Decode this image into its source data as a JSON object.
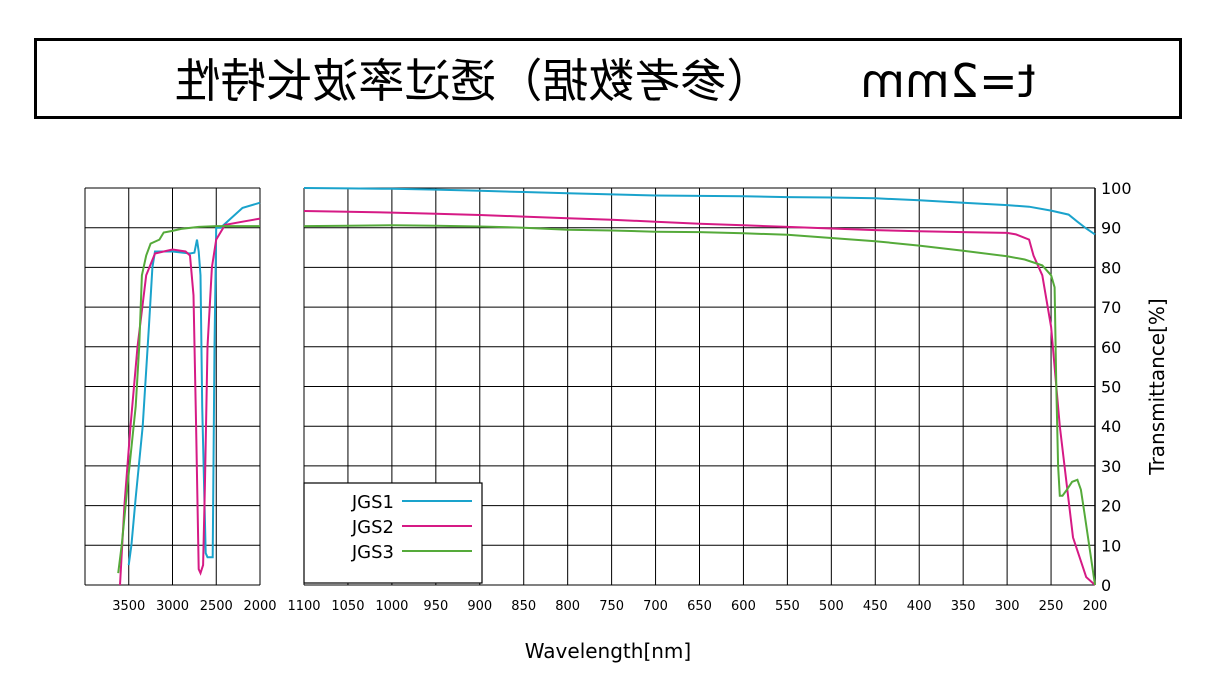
{
  "title": "t=2mm      （参考数据）透过率波长特性",
  "chart_data": {
    "type": "line",
    "ylabel": "Transmittance[%]",
    "xlabel": "Wavelength[nm]",
    "ylim": [
      0,
      100
    ],
    "y_ticks": [
      "0",
      "10",
      "20",
      "30",
      "40",
      "50",
      "60",
      "70",
      "80",
      "90",
      "100"
    ],
    "panels": [
      {
        "xlim": [
          200,
          1100
        ],
        "x_ticks": [
          "200",
          "250",
          "300",
          "350",
          "400",
          "450",
          "500",
          "550",
          "600",
          "650",
          "700",
          "750",
          "800",
          "850",
          "900",
          "950",
          "1000",
          "1050",
          "1100"
        ]
      },
      {
        "xlim": [
          2000,
          4000
        ],
        "x_ticks": [
          "2000",
          "2500",
          "3000",
          "3500"
        ]
      }
    ],
    "series": [
      {
        "name": "JGS1",
        "color": "#1aa3cc",
        "main": [
          [
            200,
            88.3
          ],
          [
            210,
            89.8
          ],
          [
            220,
            91.5
          ],
          [
            230,
            93.3
          ],
          [
            250,
            94.3
          ],
          [
            275,
            95.3
          ],
          [
            300,
            95.7
          ],
          [
            350,
            96.3
          ],
          [
            400,
            96.9
          ],
          [
            450,
            97.4
          ],
          [
            500,
            97.6
          ],
          [
            550,
            97.7
          ],
          [
            600,
            97.9
          ],
          [
            650,
            98.0
          ],
          [
            700,
            98.1
          ],
          [
            750,
            98.4
          ],
          [
            800,
            98.7
          ],
          [
            850,
            99.0
          ],
          [
            900,
            99.3
          ],
          [
            950,
            99.6
          ],
          [
            1000,
            99.8
          ],
          [
            1050,
            99.9
          ],
          [
            1100,
            100.0
          ]
        ],
        "ir": [
          [
            2000,
            96.3
          ],
          [
            2200,
            95.0
          ],
          [
            2350,
            92.0
          ],
          [
            2450,
            90.0
          ],
          [
            2500,
            90.0
          ],
          [
            2520,
            60.0
          ],
          [
            2540,
            7.0
          ],
          [
            2600,
            7.0
          ],
          [
            2620,
            8.0
          ],
          [
            2660,
            45.0
          ],
          [
            2680,
            78.0
          ],
          [
            2700,
            84.0
          ],
          [
            2720,
            87.0
          ],
          [
            2750,
            83.7
          ],
          [
            2800,
            83.5
          ],
          [
            3000,
            84.0
          ],
          [
            3100,
            84.0
          ],
          [
            3200,
            84.0
          ],
          [
            3230,
            80.0
          ],
          [
            3270,
            65.0
          ],
          [
            3340,
            40.0
          ],
          [
            3420,
            22.0
          ],
          [
            3470,
            10.0
          ],
          [
            3500,
            5.0
          ]
        ]
      },
      {
        "name": "JGS2",
        "color": "#d61a85",
        "main": [
          [
            200,
            0.0
          ],
          [
            210,
            2.0
          ],
          [
            225,
            12.0
          ],
          [
            240,
            40.0
          ],
          [
            250,
            65.0
          ],
          [
            260,
            78.0
          ],
          [
            270,
            83.0
          ],
          [
            275,
            87.0
          ],
          [
            290,
            88.3
          ],
          [
            300,
            88.7
          ],
          [
            350,
            88.9
          ],
          [
            400,
            89.1
          ],
          [
            450,
            89.4
          ],
          [
            500,
            89.8
          ],
          [
            550,
            90.2
          ],
          [
            600,
            90.6
          ],
          [
            650,
            91.0
          ],
          [
            700,
            91.5
          ],
          [
            750,
            92.0
          ],
          [
            800,
            92.4
          ],
          [
            850,
            92.8
          ],
          [
            900,
            93.2
          ],
          [
            950,
            93.5
          ],
          [
            1000,
            93.8
          ],
          [
            1050,
            94.0
          ],
          [
            1100,
            94.2
          ]
        ],
        "ir": [
          [
            2000,
            92.3
          ],
          [
            2200,
            91.5
          ],
          [
            2400,
            90.7
          ],
          [
            2500,
            87.0
          ],
          [
            2550,
            80.0
          ],
          [
            2600,
            60.0
          ],
          [
            2630,
            25.0
          ],
          [
            2650,
            5.0
          ],
          [
            2680,
            3.0
          ],
          [
            2700,
            4.0
          ],
          [
            2730,
            40.0
          ],
          [
            2760,
            73.0
          ],
          [
            2800,
            83.0
          ],
          [
            2850,
            84.0
          ],
          [
            3000,
            84.5
          ],
          [
            3100,
            84.0
          ],
          [
            3200,
            83.5
          ],
          [
            3300,
            78.0
          ],
          [
            3400,
            60.0
          ],
          [
            3480,
            40.0
          ],
          [
            3550,
            20.0
          ],
          [
            3600,
            0.0
          ]
        ]
      },
      {
        "name": "JGS3",
        "color": "#55aa3a",
        "main": [
          [
            200,
            0.0
          ],
          [
            212,
            18.0
          ],
          [
            216,
            24.0
          ],
          [
            220,
            26.5
          ],
          [
            226,
            26.0
          ],
          [
            232,
            24.0
          ],
          [
            237,
            22.5
          ],
          [
            240,
            22.5
          ],
          [
            242,
            30.0
          ],
          [
            244,
            50.0
          ],
          [
            246,
            75.0
          ],
          [
            250,
            78.0
          ],
          [
            260,
            80.5
          ],
          [
            280,
            82.0
          ],
          [
            300,
            82.8
          ],
          [
            350,
            84.2
          ],
          [
            400,
            85.5
          ],
          [
            450,
            86.6
          ],
          [
            500,
            87.4
          ],
          [
            550,
            88.2
          ],
          [
            600,
            88.6
          ],
          [
            650,
            88.9
          ],
          [
            700,
            89.0
          ],
          [
            750,
            89.3
          ],
          [
            800,
            89.5
          ],
          [
            850,
            90.0
          ],
          [
            900,
            90.3
          ],
          [
            950,
            90.5
          ],
          [
            1000,
            90.6
          ],
          [
            1050,
            90.5
          ],
          [
            1100,
            90.4
          ]
        ],
        "ir": [
          [
            2000,
            90.4
          ],
          [
            2300,
            90.4
          ],
          [
            2500,
            90.4
          ],
          [
            2700,
            90.2
          ],
          [
            2900,
            89.7
          ],
          [
            3000,
            89.2
          ],
          [
            3100,
            88.8
          ],
          [
            3150,
            87.0
          ],
          [
            3250,
            86.0
          ],
          [
            3300,
            83.0
          ],
          [
            3350,
            78.0
          ],
          [
            3380,
            60.0
          ],
          [
            3420,
            45.0
          ],
          [
            3500,
            28.0
          ],
          [
            3580,
            10.0
          ],
          [
            3620,
            3.0
          ]
        ]
      }
    ]
  }
}
